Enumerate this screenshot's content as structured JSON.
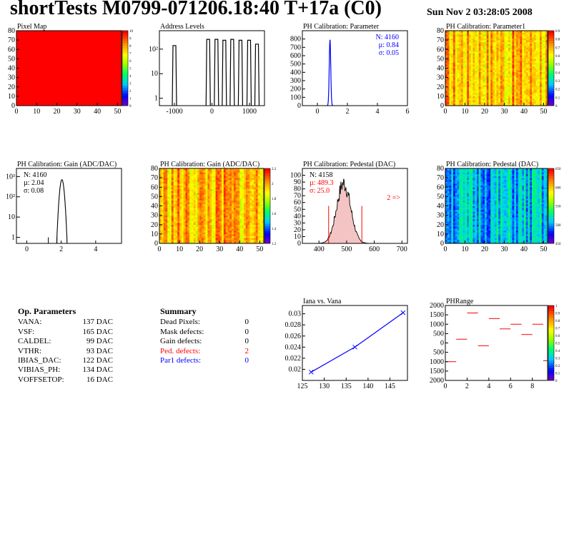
{
  "header": {
    "title": "shortTests M0799-071206.18:40 T+17a (C0)",
    "date": "Sun Nov  2 03:28:05 2008"
  },
  "colors": {
    "red": "#ff0000",
    "blue": "#0000ff",
    "black": "#000000"
  },
  "chart_data": [
    {
      "id": "pixel-map",
      "type": "heatmap",
      "title": "Pixel Map",
      "xlim": [
        0,
        52
      ],
      "ylim": [
        0,
        80
      ],
      "xticks": [
        0,
        10,
        20,
        30,
        40,
        50
      ],
      "yticks": [
        0,
        10,
        20,
        30,
        40,
        50,
        60,
        70,
        80
      ],
      "fill": "uniform",
      "zmax": 10,
      "zticks": [
        0,
        1,
        2,
        3,
        4,
        5,
        6,
        7,
        8,
        9,
        10
      ]
    },
    {
      "id": "address-levels",
      "type": "bar",
      "title": "Address Levels",
      "xlim": [
        -1400,
        1400
      ],
      "xticks": [
        -1000,
        0,
        1000
      ],
      "yscale": "log",
      "ytick_labels": [
        "1",
        "10",
        "10²"
      ],
      "peaks": [
        {
          "x": -1000,
          "count": 140
        },
        {
          "x": -100,
          "count": 250
        },
        {
          "x": 120,
          "count": 250
        },
        {
          "x": 330,
          "count": 230
        },
        {
          "x": 540,
          "count": 250
        },
        {
          "x": 760,
          "count": 230
        },
        {
          "x": 990,
          "count": 230
        },
        {
          "x": 1200,
          "count": 160
        }
      ]
    },
    {
      "id": "ph-cal-parameter",
      "type": "bar",
      "title": "PH Calibration: Parameter",
      "xlim": [
        -1,
        6
      ],
      "ylim": [
        0,
        900
      ],
      "xticks": [
        0,
        2,
        4,
        6
      ],
      "yticks": [
        0,
        100,
        200,
        300,
        400,
        500,
        600,
        700,
        800
      ],
      "peak": {
        "mean": 0.84,
        "sigma": 0.05,
        "max": 790
      },
      "stats": {
        "N": "N: 4160",
        "mu": "µ: 0.84",
        "sigma": "σ: 0.05"
      }
    },
    {
      "id": "ph-cal-parameter1",
      "type": "heatmap",
      "title": "PH Calibration: Parameter1",
      "xlim": [
        0,
        52
      ],
      "ylim": [
        0,
        80
      ],
      "xticks": [
        0,
        10,
        20,
        30,
        40,
        50
      ],
      "yticks": [
        0,
        10,
        20,
        30,
        40,
        50,
        60,
        70,
        80
      ],
      "zticks": [
        0,
        0.1,
        0.2,
        0.3,
        0.4,
        0.5,
        0.6,
        0.7,
        0.8,
        0.9
      ],
      "fill": "warm"
    },
    {
      "id": "ph-cal-gain",
      "type": "bar",
      "title": "PH Calibration: Gain (ADC/DAC)",
      "xlim": [
        -0.6,
        5.5
      ],
      "xticks": [
        0,
        2,
        4
      ],
      "yscale": "log",
      "ytick_labels": [
        "1",
        "10",
        "10²",
        "10³"
      ],
      "peak": {
        "mean": 2.04,
        "sigma": 0.08,
        "max": 700
      },
      "stats": {
        "N": "N: 4160",
        "mu": "µ: 2.04",
        "sigma": "σ: 0.08"
      }
    },
    {
      "id": "ph-cal-gain-map",
      "type": "heatmap",
      "title": "PH Calibration: Gain (ADC/DAC)",
      "xlim": [
        0,
        52
      ],
      "ylim": [
        0,
        80
      ],
      "xticks": [
        0,
        10,
        20,
        30,
        40,
        50
      ],
      "yticks": [
        0,
        10,
        20,
        30,
        40,
        50,
        60,
        70,
        80
      ],
      "zticks": [
        1.2,
        1.4,
        1.6,
        1.8,
        2,
        2.2
      ],
      "fill": "warm"
    },
    {
      "id": "ph-cal-pedestal",
      "type": "bar",
      "title": "PH Calibration: Pedestal (DAC)",
      "xlim": [
        340,
        720
      ],
      "ylim": [
        0,
        110
      ],
      "xticks": [
        400,
        500,
        600,
        700
      ],
      "yticks": [
        0,
        10,
        20,
        30,
        40,
        50,
        60,
        70,
        80,
        90,
        100
      ],
      "peak": {
        "mean": 489.3,
        "sigma": 25.0,
        "max": 88
      },
      "cut_lines": [
        435,
        555
      ],
      "stats": {
        "N": "N: 4158",
        "mu": "µ: 489.3",
        "sigma": "σ: 25.0"
      },
      "annotation": "2 =>"
    },
    {
      "id": "ph-cal-pedestal-map",
      "type": "heatmap",
      "title": "PH Calibration: Pedestal (DAC)",
      "xlim": [
        0,
        52
      ],
      "ylim": [
        0,
        80
      ],
      "xticks": [
        0,
        10,
        20,
        30,
        40,
        50
      ],
      "yticks": [
        0,
        10,
        20,
        30,
        40,
        50,
        60,
        70,
        80
      ],
      "zticks": [
        450,
        500,
        550,
        600,
        650
      ],
      "fill": "cool"
    },
    {
      "id": "iana-vs-vana",
      "type": "line",
      "title": "Iana vs. Vana",
      "xlim": [
        125,
        149
      ],
      "ylim": [
        0.018,
        0.0315
      ],
      "xticks": [
        125,
        130,
        135,
        140,
        145
      ],
      "yticks": [
        0.02,
        0.022,
        0.024,
        0.026,
        0.028,
        0.03
      ],
      "x": [
        127,
        137,
        148
      ],
      "y": [
        0.0195,
        0.024,
        0.0302
      ]
    },
    {
      "id": "ph-range",
      "type": "scatter",
      "title": "PHRange",
      "xlim": [
        0,
        9.4
      ],
      "ylim": [
        -2000,
        2000
      ],
      "xticks": [
        0,
        2,
        4,
        6,
        8
      ],
      "yticks": [
        -2000,
        -1500,
        -1000,
        -500,
        0,
        500,
        1000,
        1500,
        2000
      ],
      "ytick_labels": [
        "2000",
        "1500",
        "1000",
        "500",
        "0",
        "500",
        "1000",
        "1500",
        "2000"
      ],
      "zticks": [
        0,
        0.1,
        0.2,
        0.3,
        0.4,
        0.5,
        0.6,
        0.7,
        0.8,
        0.9,
        1
      ],
      "x": [
        0,
        1,
        2,
        3,
        4,
        5,
        6,
        7,
        8,
        9
      ],
      "y": [
        -1000,
        200,
        1600,
        -150,
        1300,
        750,
        1000,
        450,
        1000,
        -950
      ]
    }
  ],
  "op_params": {
    "title": "Op. Parameters",
    "rows": [
      {
        "name": "VANA:",
        "value": "137 DAC"
      },
      {
        "name": "VSF:",
        "value": "165 DAC"
      },
      {
        "name": "CALDEL:",
        "value": "99 DAC"
      },
      {
        "name": "VTHR:",
        "value": "93 DAC"
      },
      {
        "name": "IBIAS_DAC:",
        "value": "122 DAC"
      },
      {
        "name": "VIBIAS_PH:",
        "value": "134 DAC"
      },
      {
        "name": "VOFFSETOP:",
        "value": "16 DAC"
      }
    ]
  },
  "summary": {
    "title": "Summary",
    "rows": [
      {
        "name": "Dead Pixels:",
        "value": "0"
      },
      {
        "name": "Mask defects:",
        "value": "0"
      },
      {
        "name": "Gain defects:",
        "value": "0"
      },
      {
        "name": "Ped. defects:",
        "value": "2"
      },
      {
        "name": "Par1 defects:",
        "value": "0"
      }
    ]
  }
}
